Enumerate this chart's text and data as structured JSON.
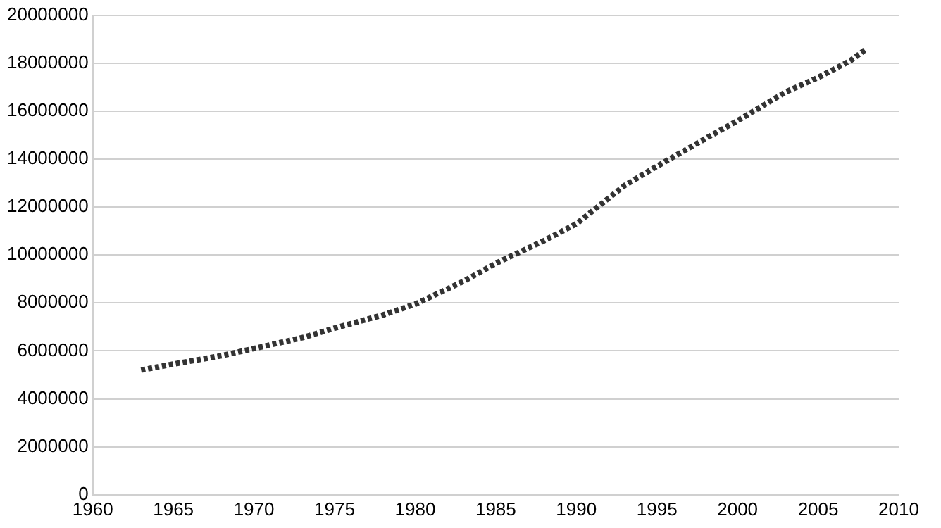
{
  "chart_data": {
    "type": "line",
    "x": [
      1963,
      1965,
      1968,
      1970,
      1973,
      1975,
      1978,
      1980,
      1983,
      1985,
      1988,
      1990,
      1993,
      1995,
      1998,
      2000,
      2003,
      2005,
      2007,
      2008
    ],
    "series": [
      {
        "color": "#333333",
        "values": [
          5200000,
          5450000,
          5800000,
          6100000,
          6550000,
          6950000,
          7500000,
          7950000,
          8900000,
          9650000,
          10600000,
          11300000,
          12900000,
          13700000,
          14850000,
          15600000,
          16800000,
          17400000,
          18100000,
          18600000
        ]
      }
    ],
    "xlim": [
      1960,
      2010
    ],
    "xticks": [
      1960,
      1965,
      1970,
      1975,
      1980,
      1985,
      1990,
      1995,
      2000,
      2005,
      2010
    ],
    "ylim": [
      0,
      20000000
    ],
    "yticks": [
      0,
      2000000,
      4000000,
      6000000,
      8000000,
      10000000,
      12000000,
      14000000,
      16000000,
      18000000,
      20000000
    ],
    "grid": "y",
    "legend": false,
    "marker": "none",
    "line_style": "dotted"
  }
}
